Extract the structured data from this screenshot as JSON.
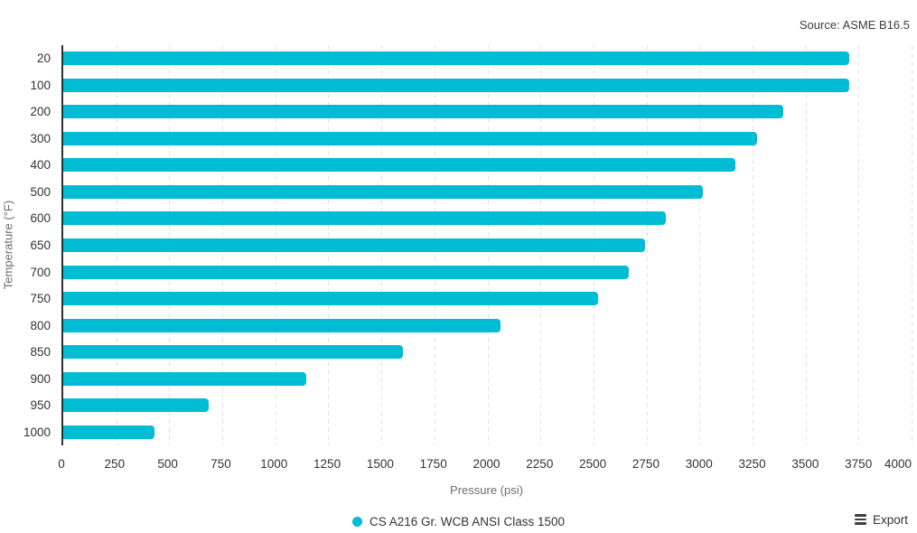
{
  "source_note": "Source: ASME B16.5",
  "export": {
    "label": "Export",
    "icon": "hamburger-menu-icon"
  },
  "legend": {
    "position": "bottom-center",
    "items": [
      {
        "label": "CS A216 Gr. WCB ANSI Class 1500",
        "marker_color": "#00BCD4"
      }
    ]
  },
  "colors": {
    "bar": "#00BCD4",
    "axis_line": "#2f2f2f",
    "gridline": "#e2e2e2",
    "tick_text": "#333333",
    "axis_title_text": "#6d6d6d"
  },
  "chart_data": {
    "type": "bar",
    "orientation": "horizontal",
    "title": "",
    "xlabel": "Pressure (psi)",
    "ylabel": "Temperature (°F)",
    "series_name": "CS A216 Gr. WCB ANSI Class 1500",
    "categories": [
      "20",
      "100",
      "200",
      "300",
      "400",
      "500",
      "600",
      "650",
      "700",
      "750",
      "800",
      "850",
      "900",
      "950",
      "1000"
    ],
    "values": [
      3705,
      3705,
      3395,
      3270,
      3170,
      3015,
      2840,
      2745,
      2665,
      2520,
      2060,
      1600,
      1145,
      685,
      430
    ],
    "xlim": [
      0,
      4000
    ],
    "x_ticks": [
      0,
      250,
      500,
      750,
      1000,
      1250,
      1500,
      1750,
      2000,
      2250,
      2500,
      2750,
      3000,
      3250,
      3500,
      3750,
      4000
    ],
    "grid": "vertical-dashed",
    "bar_color": "#00BCD4",
    "legend_position": "bottom-center"
  }
}
